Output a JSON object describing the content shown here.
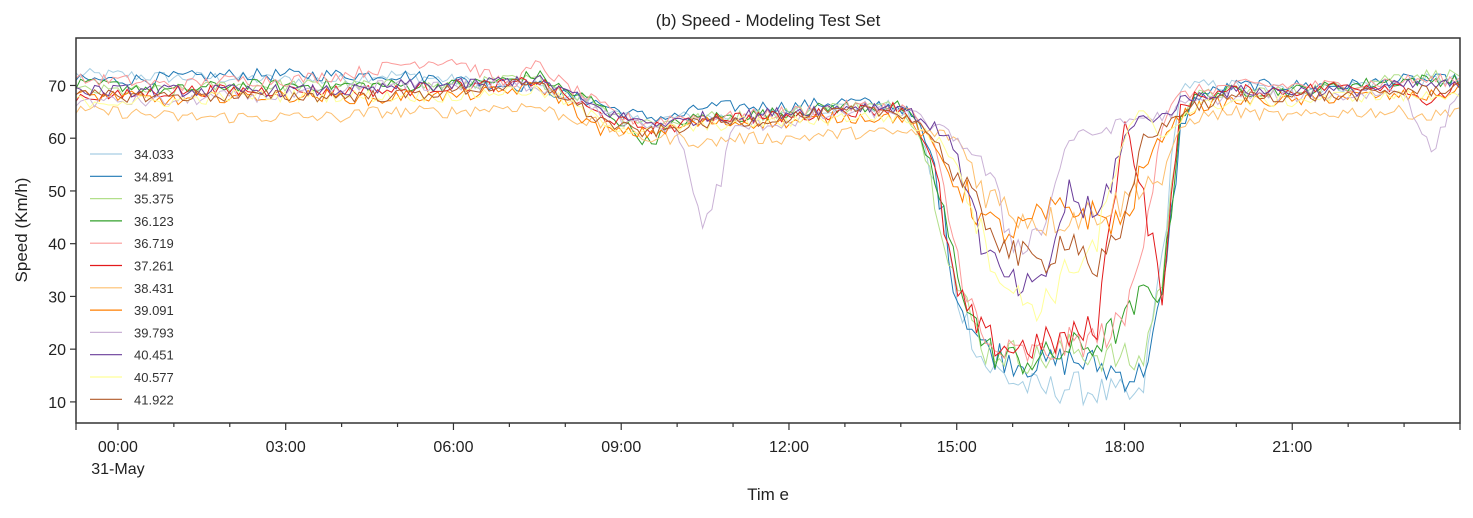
{
  "chart_data": {
    "type": "line",
    "title": "(b) Speed - Modeling Test Set",
    "xlabel": "Tim e",
    "ylabel": "Speed (Km/h)",
    "xlim": [
      -0.75,
      24.0
    ],
    "ylim": [
      6,
      79
    ],
    "yticks": [
      10,
      20,
      30,
      40,
      50,
      60,
      70
    ],
    "xticks": [
      {
        "value": 0,
        "label": "00:00",
        "sublabel": "31-May"
      },
      {
        "value": 3,
        "label": "03:00"
      },
      {
        "value": 6,
        "label": "06:00"
      },
      {
        "value": 9,
        "label": "09:00"
      },
      {
        "value": 12,
        "label": "12:00"
      },
      {
        "value": 15,
        "label": "15:00"
      },
      {
        "value": 18,
        "label": "18:00"
      },
      {
        "value": 21,
        "label": "21:00"
      }
    ],
    "grid": false,
    "legend_position": "left",
    "x": [
      -0.75,
      0,
      1,
      2,
      3,
      4,
      4.6,
      5,
      6,
      7,
      7.5,
      8,
      8.5,
      9,
      9.5,
      10,
      10.5,
      11,
      12,
      13,
      14,
      14.3,
      14.6,
      15,
      15.5,
      16,
      16.5,
      17,
      17.5,
      18,
      18.3,
      18.7,
      19,
      19.3,
      20,
      21,
      22,
      23,
      23.5,
      24
    ],
    "series": [
      {
        "name": "34.033",
        "color": "#a6cee3",
        "values": [
          72,
          72,
          71.5,
          71.5,
          71,
          71,
          72,
          72,
          71,
          70,
          70,
          68,
          67,
          64,
          63,
          64,
          64,
          64,
          65,
          66,
          66,
          62,
          52,
          30,
          17,
          14,
          12,
          13,
          12,
          11,
          10,
          40,
          70,
          70,
          70,
          69,
          70,
          71,
          71,
          71
        ]
      },
      {
        "name": "34.891",
        "color": "#1f78b4",
        "values": [
          71,
          71,
          71.5,
          72,
          72,
          72,
          72,
          72,
          71,
          70,
          70,
          68,
          67,
          65,
          64,
          64,
          66,
          66,
          66,
          67,
          66,
          63,
          55,
          30,
          20,
          18,
          17,
          18,
          17,
          15,
          15,
          30,
          62,
          68,
          70,
          70,
          70,
          71,
          71,
          71
        ]
      },
      {
        "name": "35.375",
        "color": "#b2df8a",
        "values": [
          69,
          69,
          69,
          70,
          70,
          70,
          70,
          70,
          70,
          71,
          71,
          69,
          67,
          64,
          63,
          63,
          64,
          64,
          65,
          66,
          66,
          62,
          50,
          32,
          20,
          19,
          18,
          20,
          19,
          18,
          17,
          35,
          65,
          68,
          69,
          69,
          70,
          72,
          72,
          72
        ]
      },
      {
        "name": "36.123",
        "color": "#33a02c",
        "values": [
          70,
          70,
          69,
          70,
          70,
          70,
          70,
          70,
          70,
          71,
          72,
          69,
          67,
          63,
          59,
          63,
          64,
          64,
          65,
          66,
          66,
          62,
          52,
          35,
          20,
          18,
          18,
          20,
          21,
          25,
          30,
          32,
          64,
          68,
          69,
          69,
          70,
          71,
          71,
          71
        ]
      },
      {
        "name": "36.719",
        "color": "#fb9a99",
        "values": [
          71,
          71,
          70,
          71,
          71,
          72,
          73,
          74,
          75,
          70,
          74,
          70,
          67,
          64,
          63,
          64,
          64,
          64,
          65,
          66,
          66,
          64,
          58,
          38,
          20,
          19,
          19,
          21,
          22,
          25,
          40,
          64,
          68,
          69,
          70,
          70,
          70,
          71,
          71,
          71
        ]
      },
      {
        "name": "37.261",
        "color": "#e31a1c",
        "values": [
          68,
          68,
          69,
          69,
          69,
          69,
          69,
          69,
          70,
          70,
          71,
          68,
          65,
          63,
          62,
          62,
          64,
          64,
          64,
          65,
          66,
          62,
          54,
          30,
          22,
          20,
          21,
          22,
          24,
          64,
          50,
          30,
          66,
          68,
          69,
          69,
          70,
          70,
          66,
          71
        ]
      },
      {
        "name": "38.431",
        "color": "#fdbf6f",
        "values": [
          65,
          65,
          64,
          64,
          64,
          64,
          65,
          65,
          65,
          66,
          66,
          64,
          63,
          61,
          60,
          60,
          59,
          60,
          60,
          61,
          61,
          61,
          61,
          60,
          50,
          46,
          44,
          45,
          46,
          48,
          52,
          52,
          62,
          64,
          65,
          64,
          65,
          65,
          64,
          66
        ]
      },
      {
        "name": "39.091",
        "color": "#ff7f00",
        "values": [
          68,
          68,
          67,
          68,
          68,
          68,
          67,
          68,
          68,
          69,
          70,
          67,
          62,
          61,
          61,
          62,
          63,
          63,
          63,
          64,
          64,
          62,
          58,
          52,
          44,
          42,
          45,
          47,
          45,
          44,
          53,
          61,
          64,
          66,
          67,
          67,
          68,
          68,
          68,
          69
        ]
      },
      {
        "name": "39.793",
        "color": "#cab2d6",
        "values": [
          67,
          67,
          67,
          68,
          68,
          69,
          70,
          70,
          70,
          70,
          70,
          68,
          66,
          63,
          62,
          62,
          42,
          62,
          63,
          65,
          65,
          64,
          62,
          60,
          55,
          40,
          42,
          60,
          61,
          63,
          64,
          64,
          66,
          67,
          68,
          68,
          68,
          69,
          57,
          70
        ]
      },
      {
        "name": "40.451",
        "color": "#6a3d9a",
        "values": [
          69,
          69,
          69,
          69,
          69,
          69,
          69,
          70,
          70,
          71,
          71,
          69,
          66,
          64,
          63,
          63,
          64,
          64,
          65,
          66,
          66,
          64,
          62,
          58,
          38,
          32,
          31,
          50,
          44,
          60,
          64,
          64,
          67,
          68,
          69,
          69,
          69,
          70,
          70,
          70
        ]
      },
      {
        "name": "40.577",
        "color": "#ffff99",
        "values": [
          67,
          67,
          67,
          68,
          68,
          68,
          68,
          68,
          68,
          69,
          69,
          67,
          64,
          62,
          61,
          62,
          62,
          63,
          63,
          64,
          64,
          62,
          60,
          56,
          40,
          30,
          28,
          35,
          40,
          60,
          65,
          60,
          64,
          66,
          67,
          67,
          68,
          68,
          68,
          69
        ]
      },
      {
        "name": "41.922",
        "color": "#b15928",
        "values": [
          68,
          68,
          68,
          68,
          68,
          68,
          68,
          68,
          69,
          70,
          70,
          68,
          64,
          62,
          61,
          62,
          63,
          63,
          64,
          65,
          65,
          63,
          60,
          52,
          45,
          38,
          36,
          42,
          35,
          42,
          60,
          62,
          65,
          66,
          68,
          68,
          68,
          69,
          69,
          70
        ]
      }
    ]
  }
}
